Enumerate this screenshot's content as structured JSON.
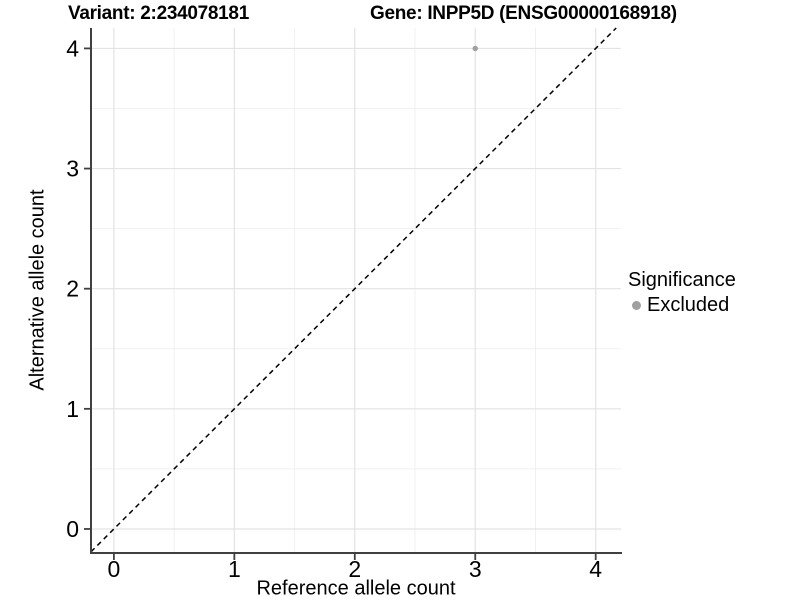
{
  "chart_data": {
    "type": "scatter",
    "title_left": "Variant: 2:234078181",
    "title_right": "Gene: INPP5D (ENSG00000168918)",
    "xlabel": "Reference allele count",
    "ylabel": "Alternative allele count",
    "x_ticks": [
      "0",
      "1",
      "2",
      "3",
      "4"
    ],
    "y_ticks": [
      "0",
      "1",
      "2",
      "3",
      "4"
    ],
    "x_tick_values": [
      0,
      1,
      2,
      3,
      4
    ],
    "y_tick_values": [
      0,
      1,
      2,
      3,
      4
    ],
    "xlim": [
      -0.19,
      4.21
    ],
    "ylim": [
      -0.2,
      4.17
    ],
    "grid": "major+minor",
    "points": [
      {
        "x": 3,
        "y": 4,
        "series": "Excluded",
        "color": "#a0a0a0"
      }
    ],
    "reference_line": {
      "slope": 1,
      "intercept": 0,
      "linetype": "dashed",
      "color": "#000000"
    },
    "legend": {
      "title": "Significance",
      "position": "right",
      "items": [
        {
          "label": "Excluded",
          "color": "#a0a0a0",
          "marker": "circle"
        }
      ]
    },
    "colors": {
      "background": "#ffffff",
      "major_grid": "#e3e3e3",
      "minor_grid": "#f1f1f1",
      "axis_line": "#404040",
      "tick_mark": "#404040",
      "text": "#000000"
    }
  }
}
